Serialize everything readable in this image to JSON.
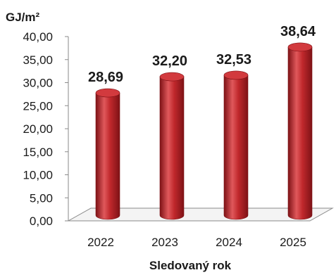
{
  "chart_data": {
    "type": "bar",
    "style": "3d-cylinder",
    "title": "",
    "ylabel": "GJ/m²",
    "xlabel": "Sledovaný rok",
    "categories": [
      "2022",
      "2023",
      "2024",
      "2025"
    ],
    "values": [
      28.69,
      32.2,
      32.53,
      38.64
    ],
    "value_labels": [
      "28,69",
      "32,20",
      "32,53",
      "38,64"
    ],
    "y_ticks": [
      "0,00",
      "5,00",
      "10,00",
      "15,00",
      "20,00",
      "25,00",
      "30,00",
      "35,00",
      "40,00"
    ],
    "ylim": [
      0,
      40
    ],
    "grid": false,
    "legend": "none",
    "colors": {
      "bar": "#c0282c",
      "bar_dark": "#7e1216",
      "bar_light": "#e0585b",
      "bar_top": "#d23a3e"
    }
  }
}
